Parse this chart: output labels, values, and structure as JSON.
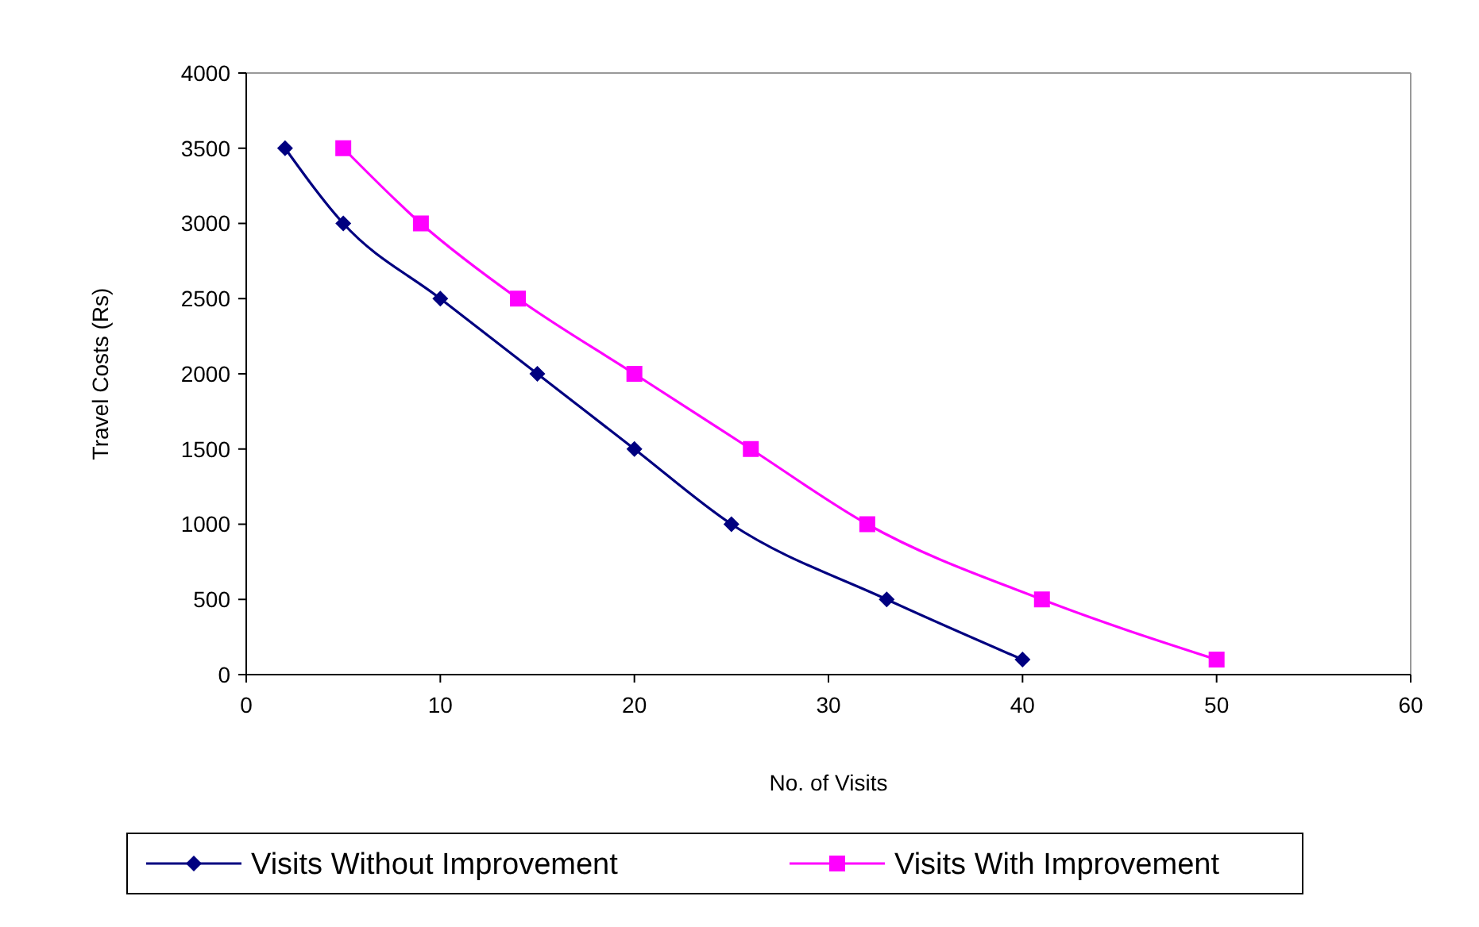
{
  "chart_data": {
    "type": "line",
    "xlabel": "No. of Visits",
    "ylabel": "Travel Costs (Rs)",
    "xlim": [
      0,
      60
    ],
    "xticks": [
      0,
      10,
      20,
      30,
      40,
      50,
      60
    ],
    "ylim": [
      0,
      4000
    ],
    "yticks": [
      0,
      500,
      1000,
      1500,
      2000,
      2500,
      3000,
      3500,
      4000
    ],
    "grid": false,
    "legend": "bottom",
    "series": [
      {
        "name": "Visits Without Improvement",
        "color": "#000080",
        "marker": "diamond",
        "x": [
          2,
          5,
          10,
          15,
          20,
          25,
          33,
          40
        ],
        "values": [
          3500,
          3000,
          2500,
          2000,
          1500,
          1000,
          500,
          100
        ]
      },
      {
        "name": "Visits With Improvement",
        "color": "#ff00ff",
        "marker": "square",
        "x": [
          5,
          9,
          14,
          20,
          26,
          32,
          41,
          50
        ],
        "values": [
          3500,
          3000,
          2500,
          2000,
          1500,
          1000,
          500,
          100
        ]
      }
    ]
  }
}
